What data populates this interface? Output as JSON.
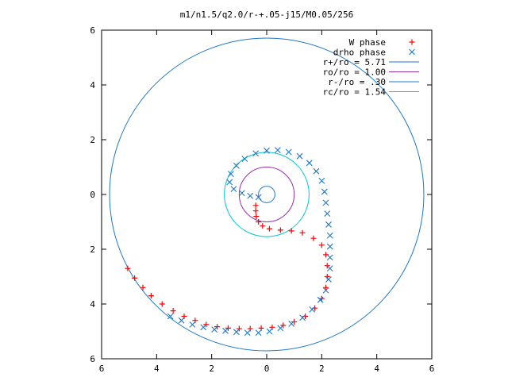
{
  "chart_data": {
    "type": "scatter",
    "title": "m1/n1.5/q2.0/r-+.05-j15/M0.05/256",
    "xlim": [
      -6,
      6
    ],
    "ylim": [
      -6,
      6
    ],
    "x_ticks": [
      -6,
      -4,
      -2,
      0,
      2,
      4,
      6
    ],
    "y_ticks": [
      -6,
      -4,
      -2,
      0,
      2,
      4,
      6
    ],
    "x_tick_labels": [
      "6",
      "4",
      "2",
      "0",
      "2",
      "4",
      "6"
    ],
    "y_tick_labels": [
      "6",
      "4",
      "2",
      "0",
      "2",
      "4",
      "6"
    ],
    "grid": false,
    "legend_position": "top-right",
    "series": [
      {
        "name": "W phase",
        "kind": "points",
        "marker": "plus",
        "color": "#ff0000",
        "points": [
          [
            -0.4,
            -0.4
          ],
          [
            -0.4,
            -0.6
          ],
          [
            -0.38,
            -0.8
          ],
          [
            -0.3,
            -1.0
          ],
          [
            -0.15,
            -1.15
          ],
          [
            0.1,
            -1.25
          ],
          [
            0.5,
            -1.3
          ],
          [
            0.9,
            -1.33
          ],
          [
            1.3,
            -1.4
          ],
          [
            1.7,
            -1.6
          ],
          [
            2.0,
            -1.85
          ],
          [
            2.15,
            -2.2
          ],
          [
            2.2,
            -2.6
          ],
          [
            2.2,
            -3.0
          ],
          [
            2.15,
            -3.4
          ],
          [
            2.0,
            -3.8
          ],
          [
            1.75,
            -4.15
          ],
          [
            1.4,
            -4.45
          ],
          [
            1.0,
            -4.65
          ],
          [
            0.6,
            -4.78
          ],
          [
            0.2,
            -4.85
          ],
          [
            -0.2,
            -4.88
          ],
          [
            -0.6,
            -4.9
          ],
          [
            -1.0,
            -4.9
          ],
          [
            -1.4,
            -4.88
          ],
          [
            -1.8,
            -4.83
          ],
          [
            -2.2,
            -4.75
          ],
          [
            -2.6,
            -4.6
          ],
          [
            -3.0,
            -4.45
          ],
          [
            -3.4,
            -4.25
          ],
          [
            -3.8,
            -4.0
          ],
          [
            -4.2,
            -3.7
          ],
          [
            -4.5,
            -3.4
          ],
          [
            -4.8,
            -3.05
          ],
          [
            -5.05,
            -2.7
          ]
        ]
      },
      {
        "name": "drho phase",
        "kind": "points",
        "marker": "cross",
        "color": "#1f78c8",
        "points": [
          [
            -0.3,
            -0.1
          ],
          [
            -0.6,
            -0.05
          ],
          [
            -0.9,
            0.05
          ],
          [
            -1.2,
            0.2
          ],
          [
            -1.35,
            0.45
          ],
          [
            -1.3,
            0.75
          ],
          [
            -1.1,
            1.05
          ],
          [
            -0.8,
            1.3
          ],
          [
            -0.4,
            1.5
          ],
          [
            0.0,
            1.6
          ],
          [
            0.4,
            1.62
          ],
          [
            0.8,
            1.55
          ],
          [
            1.2,
            1.4
          ],
          [
            1.55,
            1.15
          ],
          [
            1.8,
            0.85
          ],
          [
            2.0,
            0.5
          ],
          [
            2.1,
            0.1
          ],
          [
            2.15,
            -0.3
          ],
          [
            2.2,
            -0.7
          ],
          [
            2.25,
            -1.1
          ],
          [
            2.3,
            -1.5
          ],
          [
            2.3,
            -1.9
          ],
          [
            2.3,
            -2.3
          ],
          [
            2.3,
            -2.7
          ],
          [
            2.25,
            -3.1
          ],
          [
            2.15,
            -3.5
          ],
          [
            1.95,
            -3.85
          ],
          [
            1.65,
            -4.2
          ],
          [
            1.3,
            -4.5
          ],
          [
            0.9,
            -4.72
          ],
          [
            0.5,
            -4.88
          ],
          [
            0.1,
            -5.0
          ],
          [
            -0.3,
            -5.05
          ],
          [
            -0.7,
            -5.05
          ],
          [
            -1.1,
            -5.02
          ],
          [
            -1.5,
            -4.98
          ],
          [
            -1.9,
            -4.93
          ],
          [
            -2.3,
            -4.85
          ],
          [
            -2.7,
            -4.75
          ],
          [
            -3.1,
            -4.6
          ],
          [
            -3.5,
            -4.45
          ]
        ]
      },
      {
        "name": "r+/ro = 5.71",
        "kind": "circle",
        "radius": 5.71,
        "color": "#1f78c8"
      },
      {
        "name": "ro/ro = 1.00",
        "kind": "circle",
        "radius": 1.0,
        "color": "#9b2fae"
      },
      {
        "name": "r-/ro = .30",
        "kind": "circle",
        "radius": 0.3,
        "color": "#1f78c8"
      },
      {
        "name": "rc/ro = 1.54",
        "kind": "circle",
        "radius": 1.54,
        "color": "#00c8d0"
      }
    ]
  }
}
